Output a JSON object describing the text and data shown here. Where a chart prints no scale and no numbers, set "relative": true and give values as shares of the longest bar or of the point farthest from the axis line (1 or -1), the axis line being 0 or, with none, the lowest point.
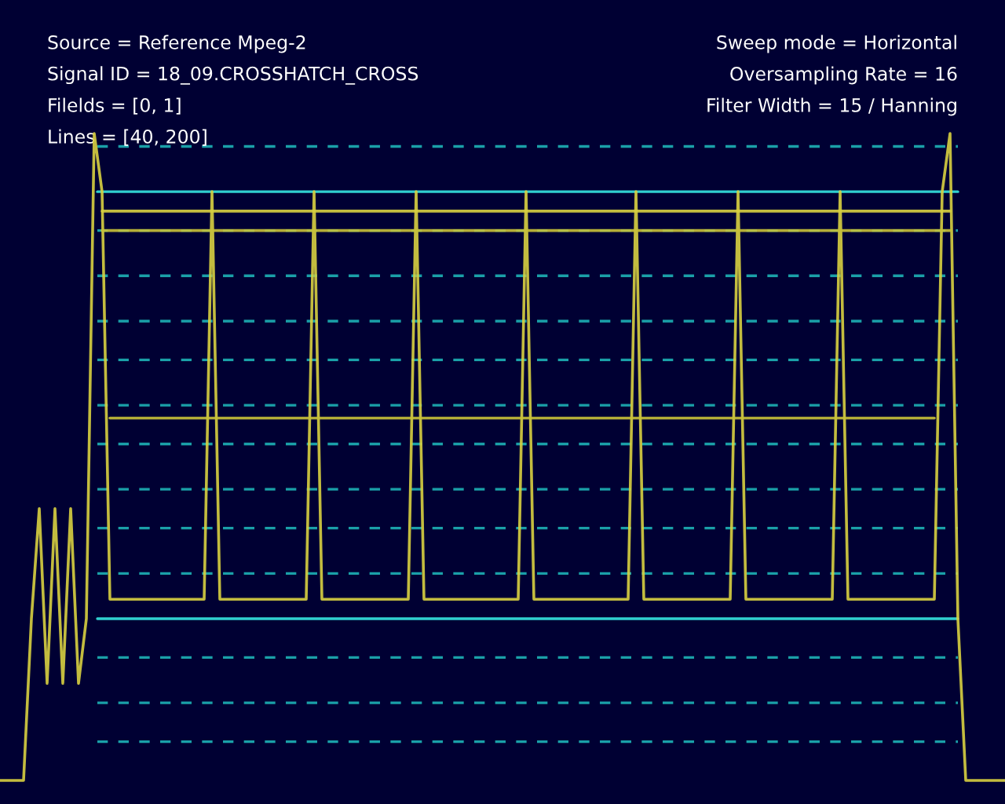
{
  "chart_data": {
    "type": "line",
    "relative": true,
    "legend": false,
    "annotations": [
      "Source = Reference Mpeg-2",
      "Sweep mode = Horizontal",
      "Signal ID = 18_09.CROSSHATCH_CROSS",
      "Oversampling Rate = 16",
      "Filelds = [0, 1]",
      "Filter Width = 15 / Hanning",
      "Lines = [40, 200]"
    ],
    "categories": [
      null,
      null,
      null,
      null,
      null,
      null,
      null,
      null,
      null,
      null,
      null,
      null,
      null,
      null,
      null,
      null,
      null,
      null,
      null,
      null,
      null,
      null,
      null,
      null,
      null,
      null,
      null,
      null,
      null,
      null,
      null,
      null,
      null,
      null,
      null,
      null,
      null,
      null,
      null,
      null,
      null,
      null,
      null,
      null,
      null,
      null,
      null,
      null,
      null,
      null,
      null,
      null,
      null,
      null,
      null,
      null,
      null,
      null,
      null,
      null,
      null,
      null,
      null,
      null,
      null,
      null,
      null,
      null,
      null,
      null,
      null,
      null,
      null,
      null,
      null,
      null,
      null,
      null,
      null,
      null,
      null,
      null,
      null,
      null,
      null,
      null,
      null,
      null,
      null,
      null,
      null,
      null,
      null,
      null,
      null,
      null,
      null,
      null,
      null,
      null,
      null,
      null,
      null,
      null,
      null,
      null,
      null,
      null,
      null,
      null,
      null,
      null,
      null,
      null,
      null,
      null,
      null,
      null,
      null,
      null,
      null,
      null,
      null,
      null,
      null,
      null,
      null,
      null,
      null
    ],
    "series": [
      {
        "color": "#d8d040",
        "values": [
          0,
          0,
          0,
          0,
          0.25,
          0.42,
          0.15,
          0.42,
          0.15,
          0.42,
          0.15,
          0.25,
          1.0,
          0.91,
          0.28,
          0.28,
          0.28,
          0.28,
          0.28,
          0.28,
          0.28,
          0.28,
          0.28,
          0.28,
          0.28,
          0.28,
          0.28,
          0.91,
          0.28,
          0.28,
          0.28,
          0.28,
          0.28,
          0.28,
          0.28,
          0.28,
          0.28,
          0.28,
          0.28,
          0.28,
          0.91,
          0.28,
          0.28,
          0.28,
          0.28,
          0.28,
          0.28,
          0.28,
          0.28,
          0.28,
          0.28,
          0.28,
          0.28,
          0.91,
          0.28,
          0.28,
          0.28,
          0.28,
          0.28,
          0.28,
          0.28,
          0.28,
          0.28,
          0.28,
          0.28,
          0.28,
          0.28,
          0.91,
          0.28,
          0.28,
          0.28,
          0.28,
          0.28,
          0.28,
          0.28,
          0.28,
          0.28,
          0.28,
          0.28,
          0.28,
          0.28,
          0.91,
          0.28,
          0.28,
          0.28,
          0.28,
          0.28,
          0.28,
          0.28,
          0.28,
          0.28,
          0.28,
          0.28,
          0.28,
          0.91,
          0.28,
          0.28,
          0.28,
          0.28,
          0.28,
          0.28,
          0.28,
          0.28,
          0.28,
          0.28,
          0.28,
          0.28,
          0.91,
          0.28,
          0.28,
          0.28,
          0.28,
          0.28,
          0.28,
          0.28,
          0.28,
          0.28,
          0.28,
          0.28,
          0.28,
          0.91,
          1.0,
          0.25,
          0,
          0,
          0,
          0,
          0,
          0
        ]
      },
      {
        "color": "#d8d040",
        "values": [
          null,
          null,
          null,
          null,
          null,
          null,
          null,
          null,
          null,
          null,
          null,
          null,
          null,
          0.88,
          0.88,
          0.88,
          0.88,
          0.88,
          0.88,
          0.88,
          0.88,
          0.88,
          0.88,
          0.88,
          0.88,
          0.88,
          0.88,
          0.88,
          0.88,
          0.88,
          0.88,
          0.88,
          0.88,
          0.88,
          0.88,
          0.88,
          0.88,
          0.88,
          0.88,
          0.88,
          0.88,
          0.88,
          0.88,
          0.88,
          0.88,
          0.88,
          0.88,
          0.88,
          0.88,
          0.88,
          0.88,
          0.88,
          0.88,
          0.88,
          0.88,
          0.88,
          0.88,
          0.88,
          0.88,
          0.88,
          0.88,
          0.88,
          0.88,
          0.88,
          0.88,
          0.88,
          0.88,
          0.88,
          0.88,
          0.88,
          0.88,
          0.88,
          0.88,
          0.88,
          0.88,
          0.88,
          0.88,
          0.88,
          0.88,
          0.88,
          0.88,
          0.88,
          0.88,
          0.88,
          0.88,
          0.88,
          0.88,
          0.88,
          0.88,
          0.88,
          0.88,
          0.88,
          0.88,
          0.88,
          0.88,
          0.88,
          0.88,
          0.88,
          0.88,
          0.88,
          0.88,
          0.88,
          0.88,
          0.88,
          0.88,
          0.88,
          0.88,
          0.88,
          0.88,
          0.88,
          0.88,
          0.88,
          0.88,
          0.88,
          0.88,
          0.88,
          0.88,
          0.88,
          0.88,
          0.88,
          0.88,
          0.88,
          null,
          null,
          null,
          null,
          null,
          null,
          null
        ]
      },
      {
        "color": "#c8c038",
        "values": [
          null,
          null,
          null,
          null,
          null,
          null,
          null,
          null,
          null,
          null,
          null,
          null,
          null,
          0.85,
          0.85,
          0.85,
          0.85,
          0.85,
          0.85,
          0.85,
          0.85,
          0.85,
          0.85,
          0.85,
          0.85,
          0.85,
          0.85,
          0.85,
          0.85,
          0.85,
          0.85,
          0.85,
          0.85,
          0.85,
          0.85,
          0.85,
          0.85,
          0.85,
          0.85,
          0.85,
          0.85,
          0.85,
          0.85,
          0.85,
          0.85,
          0.85,
          0.85,
          0.85,
          0.85,
          0.85,
          0.85,
          0.85,
          0.85,
          0.85,
          0.85,
          0.85,
          0.85,
          0.85,
          0.85,
          0.85,
          0.85,
          0.85,
          0.85,
          0.85,
          0.85,
          0.85,
          0.85,
          0.85,
          0.85,
          0.85,
          0.85,
          0.85,
          0.85,
          0.85,
          0.85,
          0.85,
          0.85,
          0.85,
          0.85,
          0.85,
          0.85,
          0.85,
          0.85,
          0.85,
          0.85,
          0.85,
          0.85,
          0.85,
          0.85,
          0.85,
          0.85,
          0.85,
          0.85,
          0.85,
          0.85,
          0.85,
          0.85,
          0.85,
          0.85,
          0.85,
          0.85,
          0.85,
          0.85,
          0.85,
          0.85,
          0.85,
          0.85,
          0.85,
          0.85,
          0.85,
          0.85,
          0.85,
          0.85,
          0.85,
          0.85,
          0.85,
          0.85,
          0.85,
          0.85,
          0.85,
          0.85,
          0.85,
          null,
          null,
          null,
          null,
          null,
          null,
          null
        ]
      },
      {
        "color": "#c8c038",
        "values": [
          null,
          null,
          null,
          null,
          null,
          null,
          null,
          null,
          null,
          null,
          null,
          null,
          null,
          null,
          0.56,
          0.56,
          0.56,
          0.56,
          0.56,
          0.56,
          0.56,
          0.56,
          0.56,
          0.56,
          0.56,
          0.56,
          0.56,
          0.56,
          0.56,
          0.56,
          0.56,
          0.56,
          0.56,
          0.56,
          0.56,
          0.56,
          0.56,
          0.56,
          0.56,
          0.56,
          0.56,
          0.56,
          0.56,
          0.56,
          0.56,
          0.56,
          0.56,
          0.56,
          0.56,
          0.56,
          0.56,
          0.56,
          0.56,
          0.56,
          0.56,
          0.56,
          0.56,
          0.56,
          0.56,
          0.56,
          0.56,
          0.56,
          0.56,
          0.56,
          0.56,
          0.56,
          0.56,
          0.56,
          0.56,
          0.56,
          0.56,
          0.56,
          0.56,
          0.56,
          0.56,
          0.56,
          0.56,
          0.56,
          0.56,
          0.56,
          0.56,
          0.56,
          0.56,
          0.56,
          0.56,
          0.56,
          0.56,
          0.56,
          0.56,
          0.56,
          0.56,
          0.56,
          0.56,
          0.56,
          0.56,
          0.56,
          0.56,
          0.56,
          0.56,
          0.56,
          0.56,
          0.56,
          0.56,
          0.56,
          0.56,
          0.56,
          0.56,
          0.56,
          0.56,
          0.56,
          0.56,
          0.56,
          0.56,
          0.56,
          0.56,
          0.56,
          0.56,
          0.56,
          0.56,
          0.56,
          null,
          null,
          null,
          null,
          null,
          null,
          null,
          null,
          null
        ]
      }
    ],
    "ref_lines": [
      {
        "axis": "y",
        "value": 0.98,
        "color": "#1aa0a8",
        "line_style": "dashed"
      },
      {
        "axis": "y",
        "value": 0.91,
        "color": "#30d0d0",
        "line_style": "solid"
      },
      {
        "axis": "y",
        "value": 0.85,
        "color": "#1aa0a8",
        "line_style": "dashed"
      },
      {
        "axis": "y",
        "value": 0.78,
        "color": "#1aa0a8",
        "line_style": "dashed"
      },
      {
        "axis": "y",
        "value": 0.71,
        "color": "#1aa0a8",
        "line_style": "dashed"
      },
      {
        "axis": "y",
        "value": 0.65,
        "color": "#1aa0a8",
        "line_style": "dashed"
      },
      {
        "axis": "y",
        "value": 0.58,
        "color": "#1aa0a8",
        "line_style": "dashed"
      },
      {
        "axis": "y",
        "value": 0.52,
        "color": "#1aa0a8",
        "line_style": "dashed"
      },
      {
        "axis": "y",
        "value": 0.45,
        "color": "#1aa0a8",
        "line_style": "dashed"
      },
      {
        "axis": "y",
        "value": 0.39,
        "color": "#1aa0a8",
        "line_style": "dashed"
      },
      {
        "axis": "y",
        "value": 0.32,
        "color": "#1aa0a8",
        "line_style": "dashed"
      },
      {
        "axis": "y",
        "value": 0.25,
        "color": "#30d0d0",
        "line_style": "solid"
      },
      {
        "axis": "y",
        "value": 0.19,
        "color": "#1aa0a8",
        "line_style": "dashed"
      },
      {
        "axis": "y",
        "value": 0.12,
        "color": "#1aa0a8",
        "line_style": "dashed"
      },
      {
        "axis": "y",
        "value": 0.06,
        "color": "#1aa0a8",
        "line_style": "dashed"
      }
    ]
  }
}
